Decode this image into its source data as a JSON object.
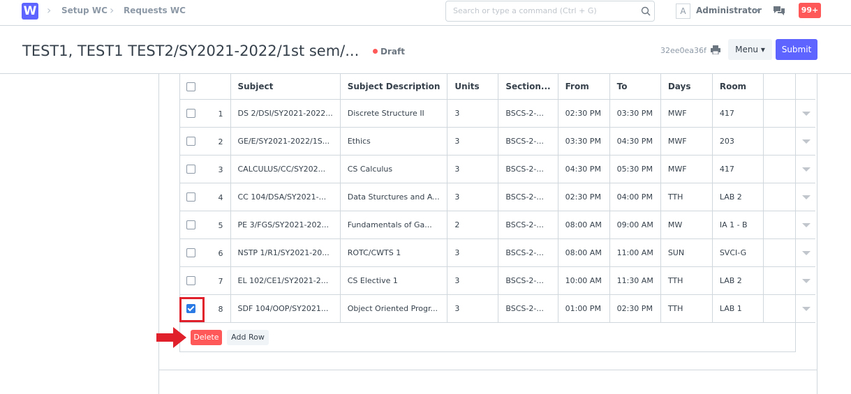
{
  "navbar": {
    "logo": "W",
    "breadcrumbs": [
      "Setup WC",
      "Requests WC"
    ],
    "search_placeholder": "Search or type a command (Ctrl + G)",
    "avatar": "A",
    "user": "Administrator",
    "notifications": "99+"
  },
  "page_header": {
    "title": "TEST1, TEST1 TEST2/SY2021-2022/1st sem/...",
    "status": "Draft",
    "doc_id": "32ee0ea36f",
    "menu": "Menu",
    "submit": "Submit"
  },
  "table": {
    "columns": [
      "Subject",
      "Subject Description",
      "Units",
      "Section...",
      "From",
      "To",
      "Days",
      "Room"
    ],
    "rows": [
      {
        "checked": false,
        "cells": [
          "1",
          "DS 2/DSI/SY2021-2022...",
          "Discrete Structure II",
          "3",
          "BSCS-2-...",
          "02:30 PM",
          "03:30 PM",
          "MWF",
          "417"
        ]
      },
      {
        "checked": false,
        "cells": [
          "2",
          "GE/E/SY2021-2022/1S...",
          "Ethics",
          "3",
          "BSCS-2-...",
          "03:30 PM",
          "04:30 PM",
          "MWF",
          "203"
        ]
      },
      {
        "checked": false,
        "cells": [
          "3",
          "CALCULUS/CC/SY202...",
          "CS Calculus",
          "3",
          "BSCS-2-...",
          "04:30 PM",
          "05:30 PM",
          "MWF",
          "417"
        ]
      },
      {
        "checked": false,
        "cells": [
          "4",
          "CC 104/DSA/SY2021-...",
          "Data Sturctures and A...",
          "3",
          "BSCS-2-...",
          "02:30 PM",
          "04:00 PM",
          "TTH",
          "LAB 2"
        ]
      },
      {
        "checked": false,
        "cells": [
          "5",
          "PE 3/FGS/SY2021-202...",
          "Fundamentals of Ga...",
          "2",
          "BSCS-2-...",
          "08:00 AM",
          "09:00 AM",
          "MW",
          "IA 1 - B"
        ]
      },
      {
        "checked": false,
        "cells": [
          "6",
          "NSTP 1/R1/SY2021-20...",
          "ROTC/CWTS 1",
          "3",
          "BSCS-2-...",
          "08:00 AM",
          "11:00 AM",
          "SUN",
          "SVCI-G"
        ]
      },
      {
        "checked": false,
        "cells": [
          "7",
          "EL 102/CE1/SY2021-2...",
          "CS Elective 1",
          "3",
          "BSCS-2-...",
          "10:00 AM",
          "11:30 AM",
          "TTH",
          "LAB 2"
        ]
      },
      {
        "checked": true,
        "cells": [
          "8",
          "SDF 104/OOP/SY2021...",
          "Object Oriented Progr...",
          "3",
          "BSCS-2-...",
          "01:00 PM",
          "02:30 PM",
          "TTH",
          "LAB 1"
        ]
      }
    ]
  },
  "actions": {
    "delete": "Delete",
    "add_row": "Add Row"
  }
}
